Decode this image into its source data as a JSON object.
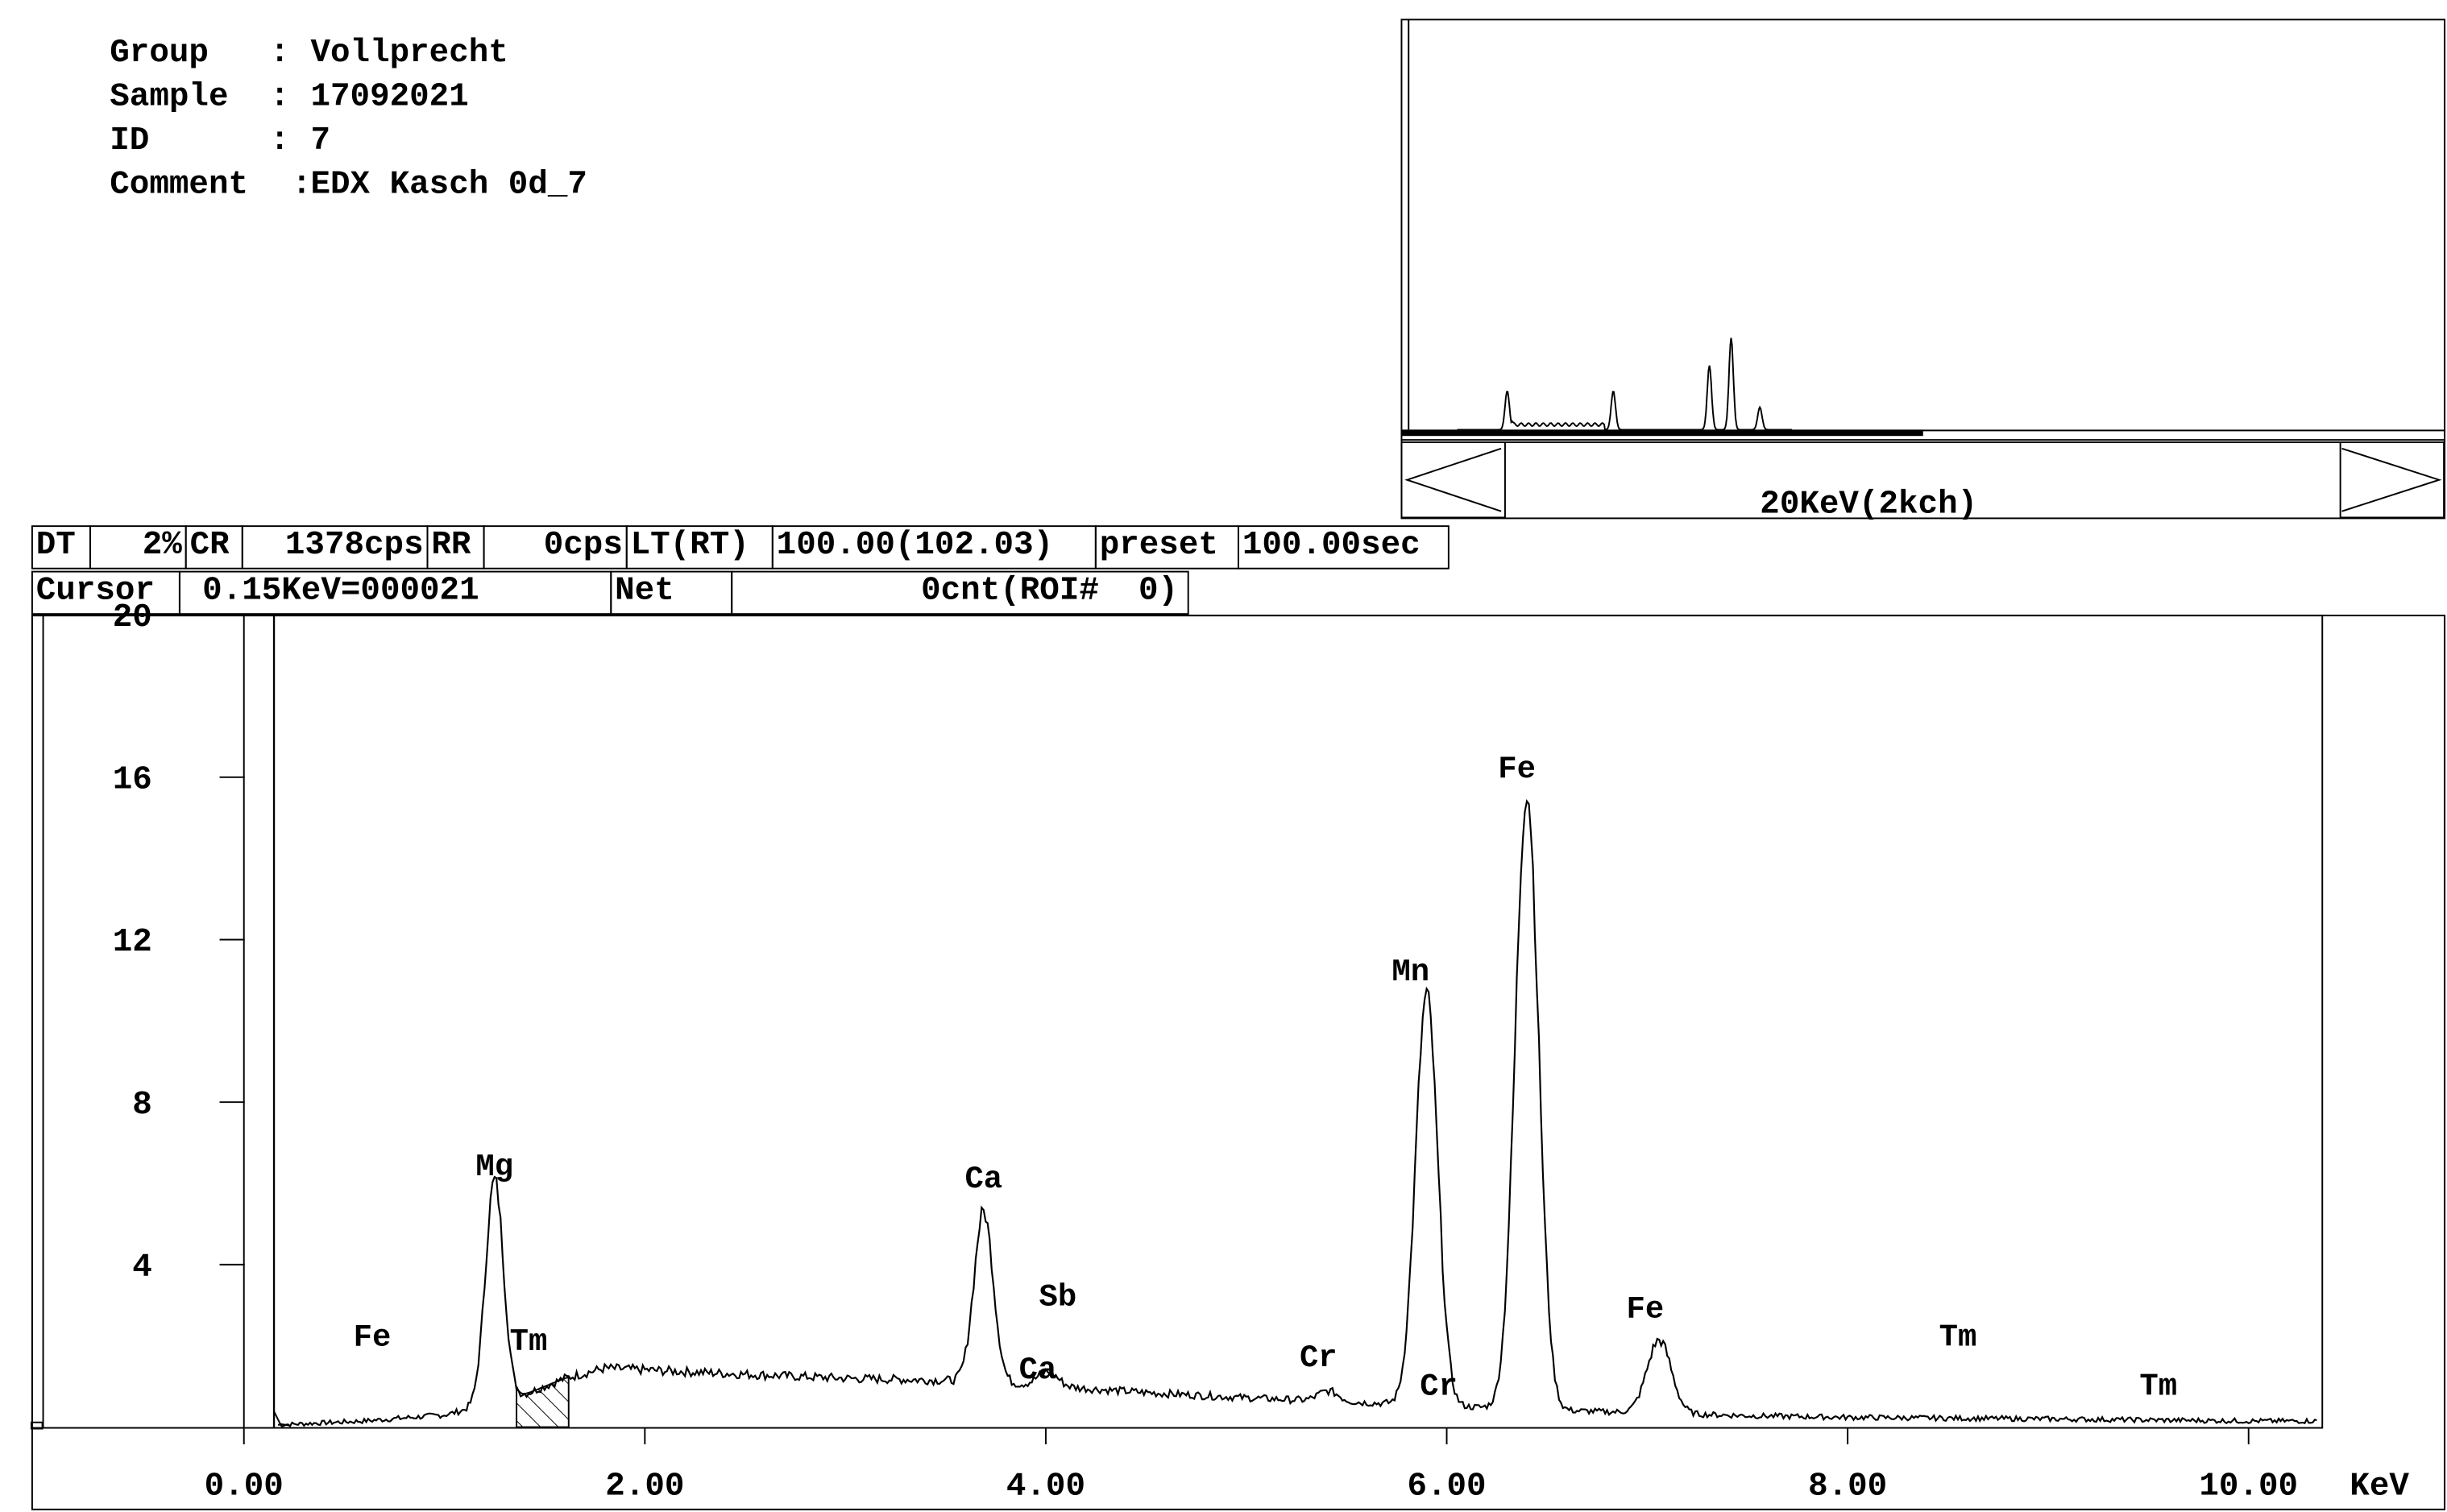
{
  "sample_info": {
    "group_key": "Group",
    "group_sep": ":",
    "group_val": "Vollprecht",
    "sample_key": "Sample",
    "sample_sep": ":",
    "sample_val": "17092021",
    "id_key": "ID",
    "id_sep": ":",
    "id_val": "7",
    "comment_key": "Comment",
    "comment_sep": ":",
    "comment_val": "EDX Kasch 0d_7"
  },
  "status_bar": {
    "dt_label": "DT",
    "dt_value": "2%",
    "cr_label": "CR",
    "cr_value": "1378cps",
    "rr_label": "RR",
    "rr_value": "0cps",
    "lt_label": "LT(RT)",
    "lt_value": "100.00(102.03)",
    "preset_label": "preset",
    "preset_value": "100.00sec"
  },
  "cursor_bar": {
    "cursor_label": "Cursor",
    "cursor_value": "0.15KeV=000021",
    "net_label": "Net",
    "net_value": "0cnt(ROI#  0)"
  },
  "overview": {
    "range_label": "20KeV(2kch)",
    "scroll_fraction": 0.5,
    "peaks": [
      {
        "e": 1.25,
        "h": 0.38
      },
      {
        "e": 3.69,
        "h": 0.38
      },
      {
        "e": 5.9,
        "h": 0.63
      },
      {
        "e": 6.4,
        "h": 0.9
      },
      {
        "e": 7.06,
        "h": 0.22
      }
    ]
  },
  "chart_data": {
    "type": "line",
    "xlabel": "KeV",
    "xlim": [
      -1.0,
      10.85
    ],
    "ylim": [
      0,
      20
    ],
    "x_ticks": [
      0,
      2,
      4,
      6,
      8,
      10
    ],
    "x_tick_labels": [
      "0.00",
      "2.00",
      "4.00",
      "6.00",
      "8.00",
      "10.00"
    ],
    "y_ticks": [
      4,
      8,
      12,
      16,
      20
    ],
    "y_tick_labels": [
      "4",
      "8",
      "12",
      "16",
      "20"
    ],
    "cursor_kev": 0.15,
    "roi_kev": [
      1.36,
      1.62
    ],
    "background": [
      [
        0.15,
        0.05
      ],
      [
        0.6,
        0.15
      ],
      [
        1.0,
        0.3
      ],
      [
        1.35,
        0.7
      ],
      [
        1.6,
        1.2
      ],
      [
        1.8,
        1.45
      ],
      [
        2.5,
        1.3
      ],
      [
        3.0,
        1.2
      ],
      [
        3.5,
        1.15
      ],
      [
        3.9,
        1.05
      ],
      [
        4.5,
        0.85
      ],
      [
        5.0,
        0.72
      ],
      [
        5.5,
        0.62
      ],
      [
        6.0,
        0.52
      ],
      [
        6.5,
        0.42
      ],
      [
        7.0,
        0.35
      ],
      [
        7.5,
        0.28
      ],
      [
        8.0,
        0.24
      ],
      [
        9.0,
        0.2
      ],
      [
        10.0,
        0.15
      ],
      [
        10.3,
        0.15
      ]
    ],
    "peaks": [
      {
        "element": "Mg",
        "energy": 1.25,
        "height": 5.5,
        "width": 0.045
      },
      {
        "element": "Ca",
        "energy": 3.69,
        "height": 4.2,
        "width": 0.048
      },
      {
        "element": "Ca",
        "energy": 4.01,
        "height": 0.35,
        "width": 0.05
      },
      {
        "element": "Mn",
        "energy": 5.9,
        "height": 10.1,
        "width": 0.055
      },
      {
        "element": "Fe",
        "energy": 6.4,
        "height": 15.2,
        "width": 0.058
      },
      {
        "element": "Fe",
        "energy": 7.06,
        "height": 1.8,
        "width": 0.06
      },
      {
        "element": "Cr",
        "energy": 5.41,
        "height": 0.25,
        "width": 0.05
      }
    ],
    "annotations": [
      {
        "text": "Fe",
        "x": 0.64,
        "y": 2.0
      },
      {
        "text": "Mg",
        "x": 1.25,
        "y": 6.2
      },
      {
        "text": "Tm",
        "x": 1.42,
        "y": 1.9
      },
      {
        "text": "Ca",
        "x": 3.69,
        "y": 5.9
      },
      {
        "text": "Sb",
        "x": 4.06,
        "y": 3.0
      },
      {
        "text": "Ca",
        "x": 3.96,
        "y": 1.2
      },
      {
        "text": "Cr",
        "x": 5.36,
        "y": 1.5
      },
      {
        "text": "Cr",
        "x": 5.96,
        "y": 0.8
      },
      {
        "text": "Mn",
        "x": 5.82,
        "y": 11.0
      },
      {
        "text": "Fe",
        "x": 6.35,
        "y": 16.0
      },
      {
        "text": "Fe",
        "x": 6.99,
        "y": 2.7
      },
      {
        "text": "Tm",
        "x": 8.55,
        "y": 2.0
      },
      {
        "text": "Tm",
        "x": 9.55,
        "y": 0.8
      }
    ]
  }
}
